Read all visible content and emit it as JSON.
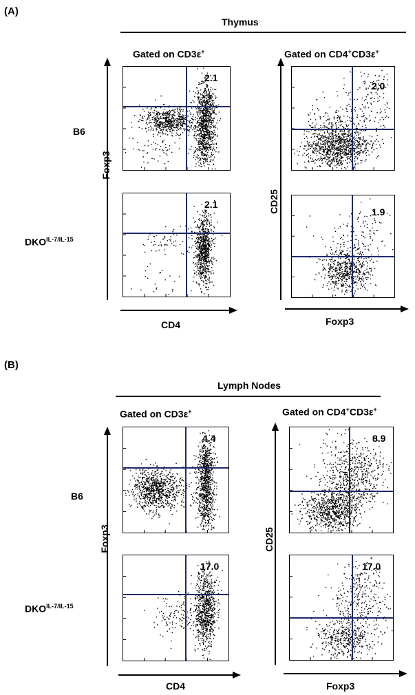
{
  "figure": {
    "sections": [
      {
        "panel_label": "(A)",
        "tissue": "Thymus",
        "gate_left": {
          "text": "Gated on CD3ε",
          "sup": "+"
        },
        "gate_right": {
          "text": "Gated on CD4",
          "sup": "+",
          "text2": "CD3ε",
          "sup2": "+"
        },
        "rows": [
          {
            "label": "B6",
            "label_sup": ""
          },
          {
            "label": "DKO",
            "label_sup": "IL-7/IL-15"
          }
        ],
        "left_ylabel": "Foxp3",
        "left_xlabel": "CD4",
        "right_ylabel": "CD25",
        "right_xlabel": "Foxp3",
        "plots": [
          {
            "name": "a-b6-foxp3-cd4",
            "percent": "2.1"
          },
          {
            "name": "a-b6-cd25-foxp3",
            "percent": "2.0"
          },
          {
            "name": "a-dko-foxp3-cd4",
            "percent": "2.1"
          },
          {
            "name": "a-dko-cd25-foxp3",
            "percent": "1.9"
          }
        ]
      },
      {
        "panel_label": "(B)",
        "tissue": "Lymph Nodes",
        "gate_left": {
          "text": "Gated on CD3ε",
          "sup": "+"
        },
        "gate_right": {
          "text": "Gated on CD4",
          "sup": "+",
          "text2": "CD3ε",
          "sup2": "+"
        },
        "rows": [
          {
            "label": "B6",
            "label_sup": ""
          },
          {
            "label": "DKO",
            "label_sup": "IL-7/IL-15"
          }
        ],
        "left_ylabel": "Foxp3",
        "left_xlabel": "CD4",
        "right_ylabel": "CD25",
        "right_xlabel": "Foxp3",
        "plots": [
          {
            "name": "b-b6-foxp3-cd4",
            "percent": "4.4"
          },
          {
            "name": "b-b6-cd25-foxp3",
            "percent": "8.9"
          },
          {
            "name": "b-dko-foxp3-cd4",
            "percent": "17.0"
          },
          {
            "name": "b-dko-cd25-foxp3",
            "percent": "17.0"
          }
        ]
      }
    ]
  }
}
